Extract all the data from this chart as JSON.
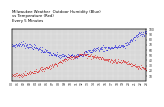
{
  "title": "Milwaukee Weather  Outdoor Humidity (Blue)\nvs Temperature (Red)\nEvery 5 Minutes",
  "bg_color": "#ffffff",
  "plot_bg": "#d8d8d8",
  "blue_color": "#0000dd",
  "red_color": "#dd0000",
  "title_fontsize": 2.8,
  "tick_fontsize": 2.2,
  "dot_size": 0.8,
  "grid_color": "#ffffff",
  "ylim": [
    0,
    100
  ],
  "right_yticks": [
    10,
    20,
    30,
    40,
    50,
    60,
    70,
    80,
    90,
    100
  ],
  "right_yticklabels": [
    "10",
    "20",
    "30",
    "40",
    "50",
    "60",
    "70",
    "80",
    "90",
    "100"
  ],
  "n_points": 288,
  "blue_keyframes_x": [
    0,
    20,
    60,
    90,
    120,
    150,
    180,
    210,
    240,
    270,
    288
  ],
  "blue_keyframes_y": [
    68,
    72,
    62,
    50,
    48,
    52,
    62,
    65,
    68,
    90,
    95
  ],
  "red_keyframes_x": [
    0,
    20,
    60,
    90,
    120,
    150,
    180,
    210,
    240,
    270,
    288
  ],
  "red_keyframes_y": [
    12,
    12,
    22,
    32,
    45,
    52,
    47,
    40,
    38,
    28,
    22
  ],
  "noise_blue": 2.5,
  "noise_red": 2.0,
  "seed": 7
}
